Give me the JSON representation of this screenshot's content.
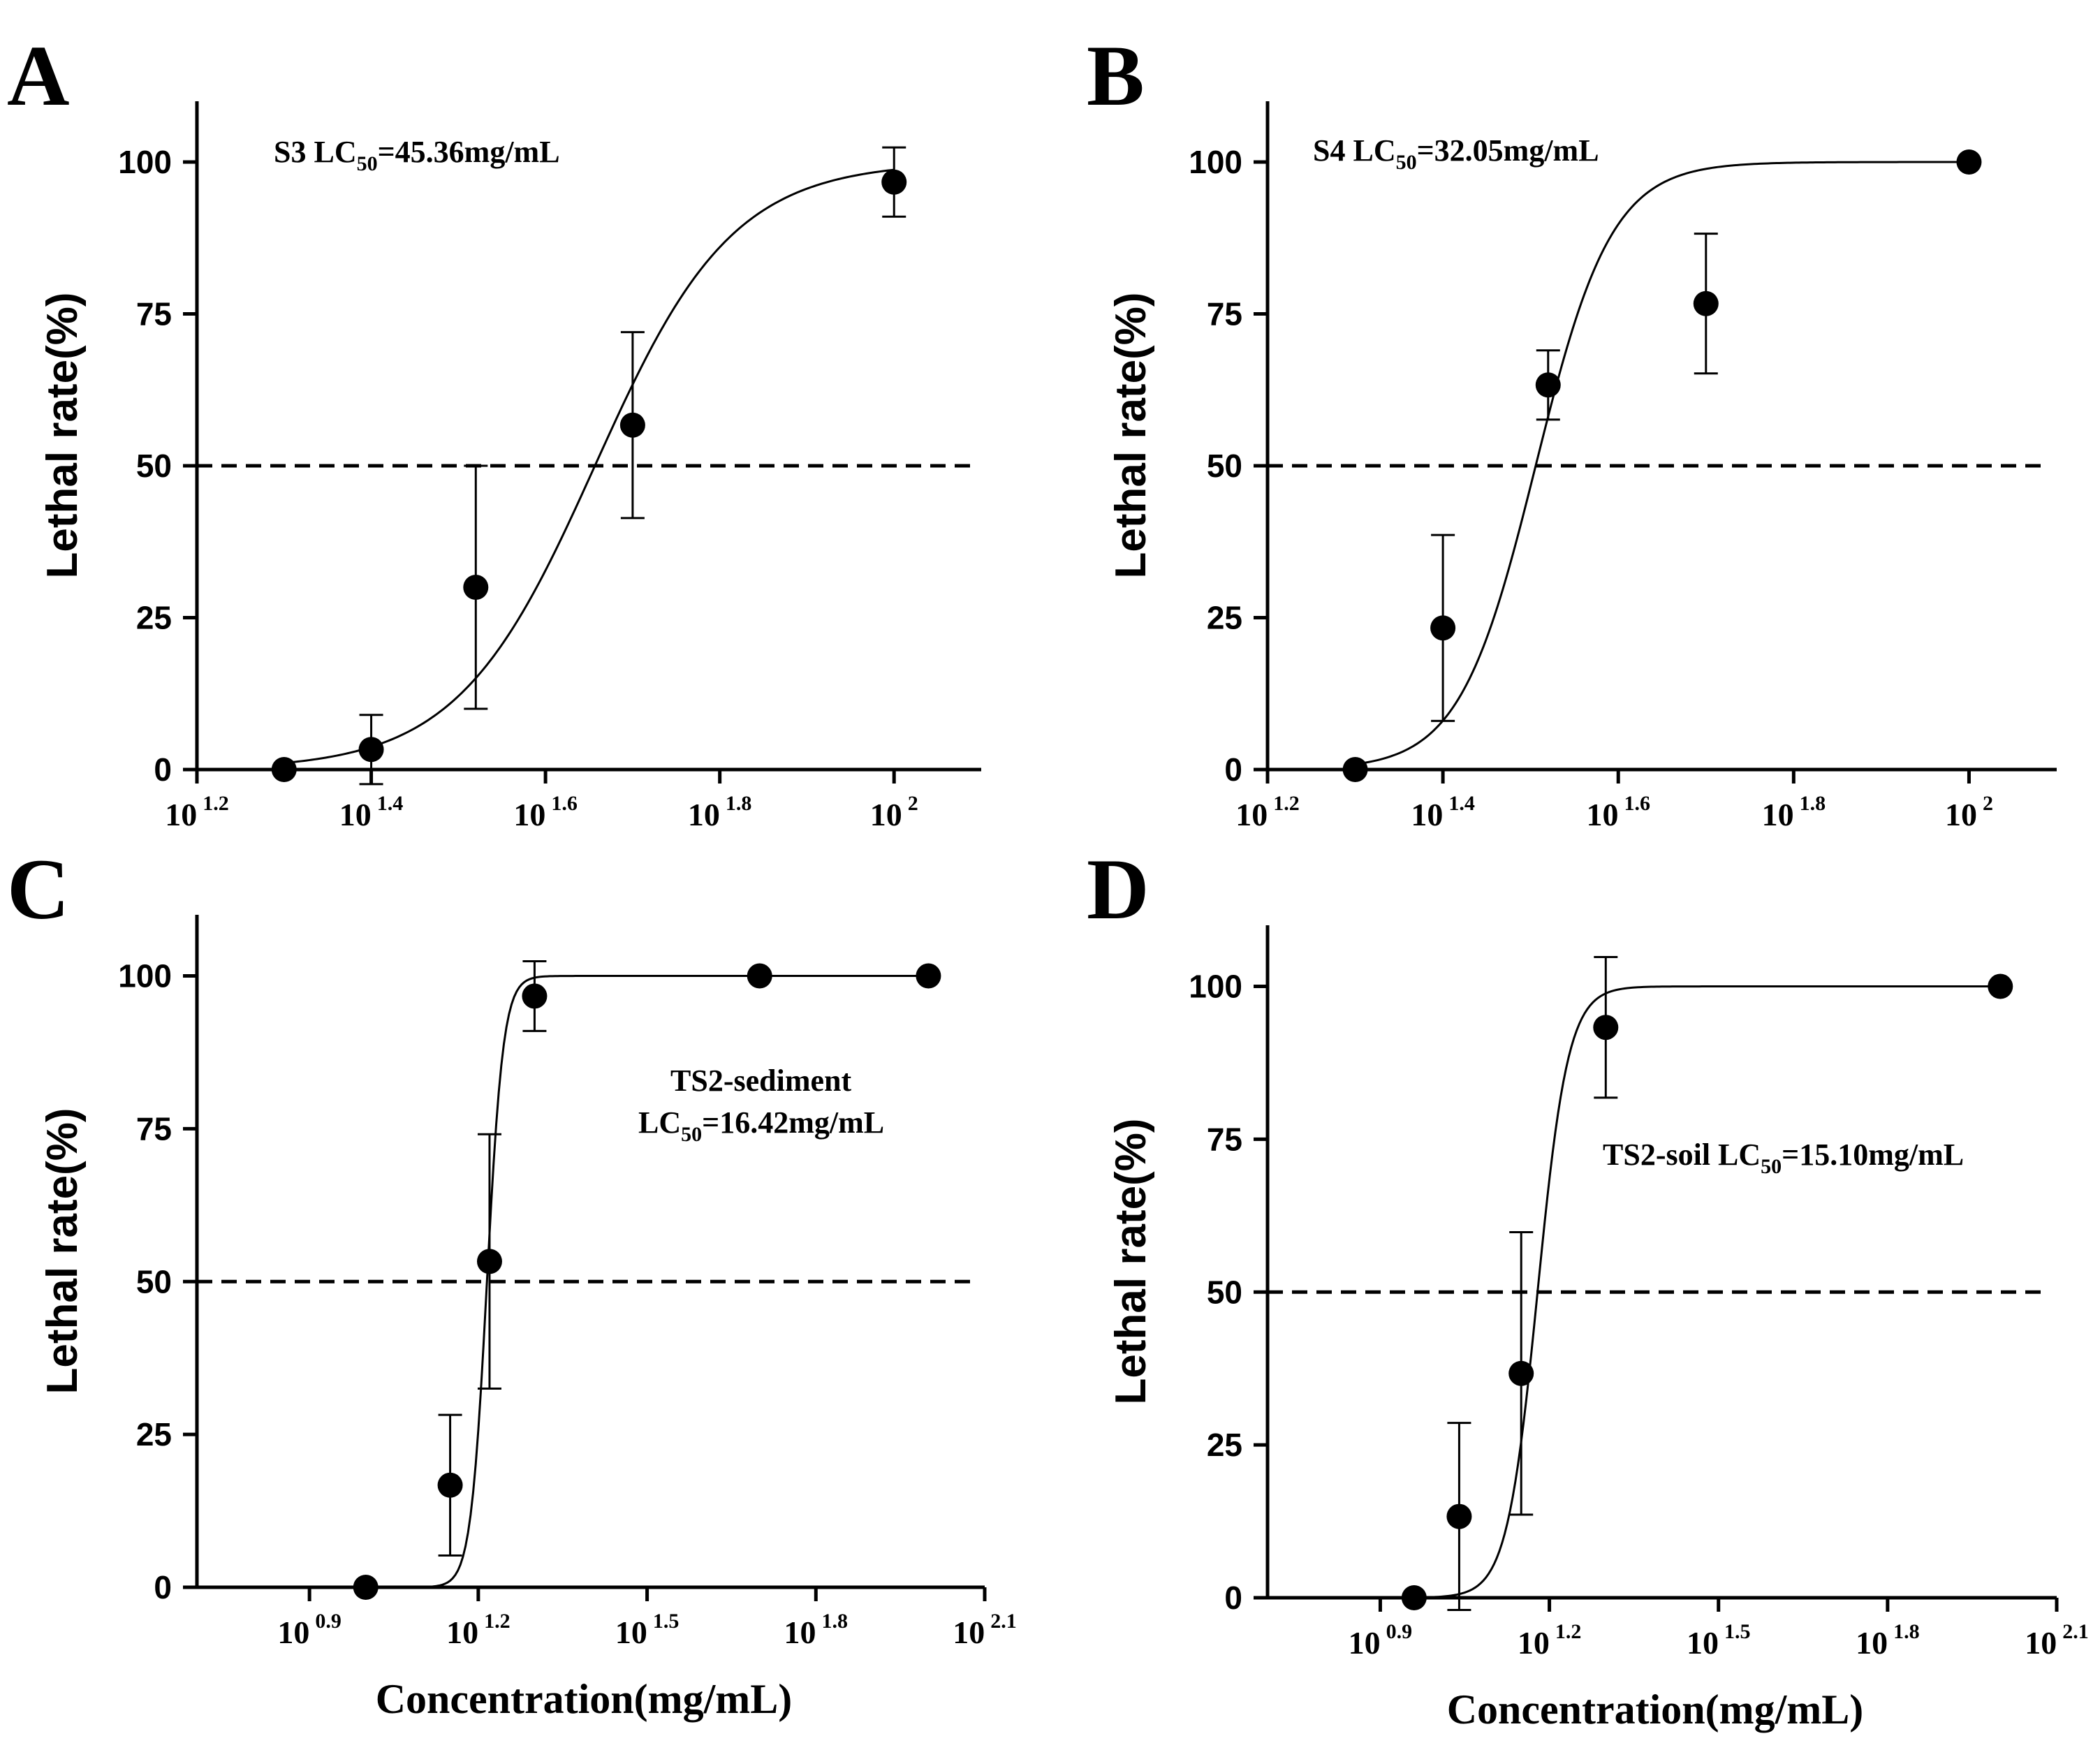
{
  "chart_data": [
    {
      "panel": "A",
      "type": "scatter",
      "xscale": "log10",
      "xlim_exp": [
        1.2,
        2.1
      ],
      "xticks": [
        {
          "base": "10",
          "exp": "1.2"
        },
        {
          "base": "10",
          "exp": "1.4"
        },
        {
          "base": "10",
          "exp": "1.6"
        },
        {
          "base": "10",
          "exp": "1.8"
        },
        {
          "base": "10",
          "exp": "2"
        }
      ],
      "xtick_exps": [
        1.2,
        1.4,
        1.6,
        1.8,
        2.0
      ],
      "ylim": [
        0,
        110
      ],
      "yticks": [
        0,
        25,
        50,
        75,
        100
      ],
      "ylabel": "Lethal rate(%)",
      "xlabel": "",
      "reference_line_y": 50,
      "annotation": [
        {
          "prefix": "S3  LC",
          "sub": "50",
          "suffix": "=45.36mg/mL"
        }
      ],
      "points": [
        {
          "log_x": 1.3,
          "y": 0,
          "err": 0
        },
        {
          "log_x": 1.4,
          "y": 3.3,
          "err": 5.7
        },
        {
          "log_x": 1.52,
          "y": 30,
          "err": 20
        },
        {
          "log_x": 1.7,
          "y": 56.7,
          "err": 15.3
        },
        {
          "log_x": 2.0,
          "y": 96.7,
          "err": 5.7
        }
      ],
      "fit": {
        "log_lc50": 1.6567,
        "hill": 5.5,
        "top": 100,
        "bottom": 0,
        "x_range": [
          1.3,
          2.0
        ]
      }
    },
    {
      "panel": "B",
      "type": "scatter",
      "xscale": "log10",
      "xlim_exp": [
        1.2,
        2.1
      ],
      "xticks": [
        {
          "base": "10",
          "exp": "1.2"
        },
        {
          "base": "10",
          "exp": "1.4"
        },
        {
          "base": "10",
          "exp": "1.6"
        },
        {
          "base": "10",
          "exp": "1.8"
        },
        {
          "base": "10",
          "exp": "2"
        }
      ],
      "xtick_exps": [
        1.2,
        1.4,
        1.6,
        1.8,
        2.0
      ],
      "ylim": [
        0,
        110
      ],
      "yticks": [
        0,
        25,
        50,
        75,
        100
      ],
      "ylabel": "Lethal rate(%)",
      "xlabel": "",
      "reference_line_y": 50,
      "annotation": [
        {
          "prefix": "S4  LC",
          "sub": "50",
          "suffix": "=32.05mg/mL"
        }
      ],
      "points": [
        {
          "log_x": 1.3,
          "y": 0,
          "err": 0
        },
        {
          "log_x": 1.4,
          "y": 23.3,
          "err": 15.3
        },
        {
          "log_x": 1.52,
          "y": 63.3,
          "err": 5.7
        },
        {
          "log_x": 1.7,
          "y": 76.7,
          "err": 11.5
        },
        {
          "log_x": 2.0,
          "y": 100,
          "err": 0
        }
      ],
      "fit": {
        "log_lc50": 1.5058,
        "hill": 10,
        "top": 100,
        "bottom": 0,
        "x_range": [
          1.3,
          2.0
        ]
      }
    },
    {
      "panel": "C",
      "type": "scatter",
      "xscale": "log10",
      "xlim_exp": [
        0.7,
        2.1
      ],
      "xticks": [
        {
          "base": "10",
          "exp": "0.9"
        },
        {
          "base": "10",
          "exp": "1.2"
        },
        {
          "base": "10",
          "exp": "1.5"
        },
        {
          "base": "10",
          "exp": "1.8"
        },
        {
          "base": "10",
          "exp": "2.1"
        }
      ],
      "xtick_exps": [
        0.9,
        1.2,
        1.5,
        1.8,
        2.1
      ],
      "ylim": [
        0,
        110
      ],
      "yticks": [
        0,
        25,
        50,
        75,
        100
      ],
      "ylabel": "Lethal rate(%)",
      "xlabel": "Concentration(mg/mL)",
      "reference_line_y": 50,
      "annotation": [
        {
          "prefix": "TS2-sediment",
          "sub": "",
          "suffix": ""
        },
        {
          "prefix": "LC",
          "sub": "50",
          "suffix": "=16.42mg/mL"
        }
      ],
      "points": [
        {
          "log_x": 1.0,
          "y": 0,
          "err": 0
        },
        {
          "log_x": 1.15,
          "y": 16.7,
          "err": 11.5
        },
        {
          "log_x": 1.22,
          "y": 53.3,
          "err": 20.8
        },
        {
          "log_x": 1.3,
          "y": 96.7,
          "err": 5.7
        },
        {
          "log_x": 1.7,
          "y": 100,
          "err": 0
        },
        {
          "log_x": 2.0,
          "y": 100,
          "err": 0
        }
      ],
      "fit": {
        "log_lc50": 1.2154,
        "hill": 30,
        "top": 100,
        "bottom": 0,
        "x_range": [
          1.0,
          2.0
        ]
      }
    },
    {
      "panel": "D",
      "type": "scatter",
      "xscale": "log10",
      "xlim_exp": [
        0.7,
        2.1
      ],
      "xticks": [
        {
          "base": "10",
          "exp": "0.9"
        },
        {
          "base": "10",
          "exp": "1.2"
        },
        {
          "base": "10",
          "exp": "1.5"
        },
        {
          "base": "10",
          "exp": "1.8"
        },
        {
          "base": "10",
          "exp": "2.1"
        }
      ],
      "xtick_exps": [
        0.9,
        1.2,
        1.5,
        1.8,
        2.1
      ],
      "ylim": [
        0,
        110
      ],
      "yticks": [
        0,
        25,
        50,
        75,
        100
      ],
      "ylabel": "Lethal rate(%)",
      "xlabel": "Concentration(mg/mL)",
      "reference_line_y": 50,
      "annotation": [
        {
          "prefix": "TS2-soil  LC",
          "sub": "50",
          "suffix": "=15.10mg/mL"
        }
      ],
      "points": [
        {
          "log_x": 0.96,
          "y": 0,
          "err": 0
        },
        {
          "log_x": 1.04,
          "y": 13.3,
          "err": 15.3
        },
        {
          "log_x": 1.15,
          "y": 36.7,
          "err": 23.1
        },
        {
          "log_x": 1.3,
          "y": 93.3,
          "err": 11.5
        },
        {
          "log_x": 2.0,
          "y": 100,
          "err": 0
        }
      ],
      "fit": {
        "log_lc50": 1.179,
        "hill": 16,
        "top": 100,
        "bottom": 0,
        "x_range": [
          0.96,
          2.0
        ]
      }
    }
  ]
}
